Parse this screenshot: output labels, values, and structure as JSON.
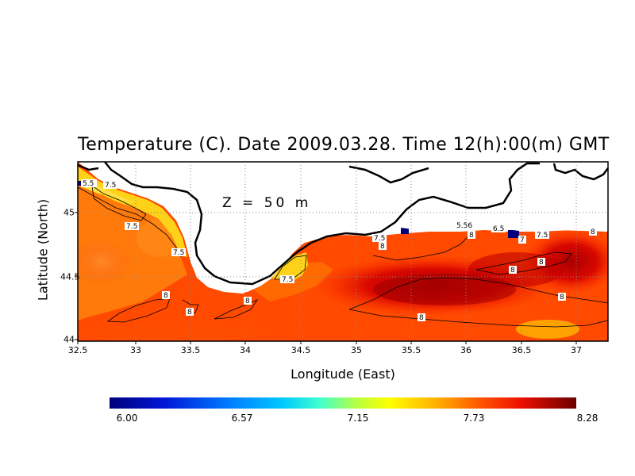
{
  "title": "Temperature (C). Date 2009.03.28. Time 12(h):00(m) GMT",
  "depth_label": "Z = 50 m",
  "x_axis": {
    "label": "Longitude (East)",
    "ticks": [
      "32.5",
      "33",
      "33.5",
      "34",
      "34.5",
      "35",
      "35.5",
      "36",
      "36.5",
      "37"
    ]
  },
  "y_axis": {
    "label": "Latitude (North)",
    "ticks": [
      "45",
      "44.5",
      "44"
    ]
  },
  "colorbar": {
    "ticks": [
      "6.00",
      "6.57",
      "7.15",
      "7.73",
      "8.28"
    ],
    "min": 6.0,
    "max": 8.28
  },
  "contour_labels": [
    "5.5",
    "7.5",
    "7.5",
    "7.5",
    "7.5",
    "7.5",
    "8",
    "8",
    "8",
    "8",
    "8",
    "8",
    "8",
    "8",
    "8",
    "5.56",
    "6.5",
    "7",
    "7.5",
    "8"
  ],
  "colors": {
    "warm_low": "#ffd21a",
    "mid": "#ff6a00",
    "hot": "#ff2a00",
    "max": "#7a0000",
    "land": "#ffffff",
    "cold": "#00007a"
  }
}
